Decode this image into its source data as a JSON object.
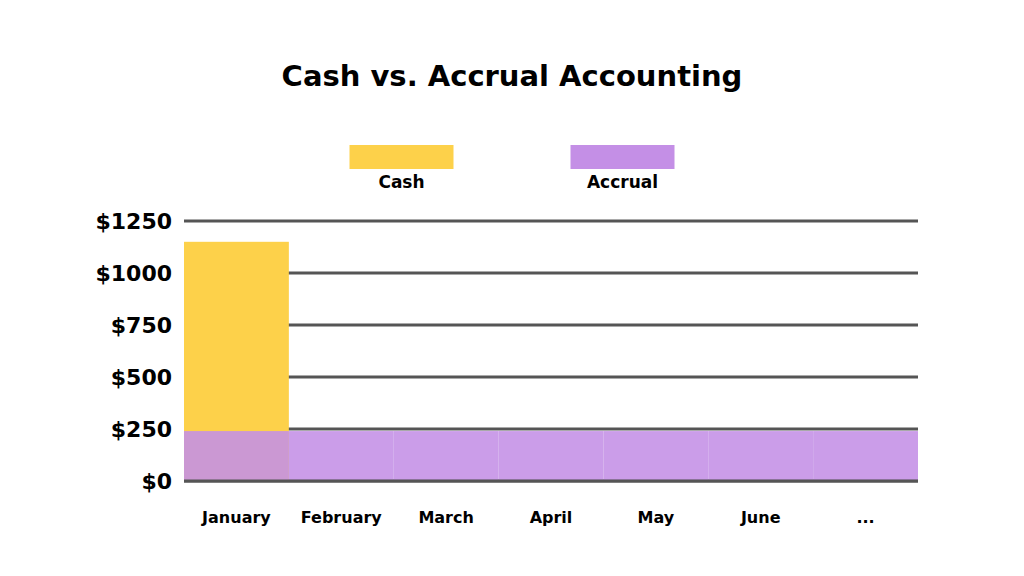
{
  "chart_data": {
    "type": "bar",
    "title": "Cash vs. Accrual Accounting",
    "categories": [
      "January",
      "February",
      "March",
      "April",
      "May",
      "June",
      "..."
    ],
    "series": [
      {
        "name": "Cash",
        "color": "#fdd14a",
        "values": [
          1150,
          0,
          0,
          0,
          0,
          0,
          0
        ]
      },
      {
        "name": "Accrual",
        "color": "#c48fe6",
        "values": [
          240,
          240,
          240,
          240,
          240,
          240,
          240
        ]
      }
    ],
    "ylim": [
      0,
      1250
    ],
    "yticks": [
      {
        "value": 0,
        "label": "$0"
      },
      {
        "value": 250,
        "label": "$250"
      },
      {
        "value": 500,
        "label": "$500"
      },
      {
        "value": 750,
        "label": "$750"
      },
      {
        "value": 1000,
        "label": "$1000"
      },
      {
        "value": 1250,
        "label": "$1250"
      }
    ],
    "grid": true,
    "stacked": false,
    "legend": "top"
  }
}
